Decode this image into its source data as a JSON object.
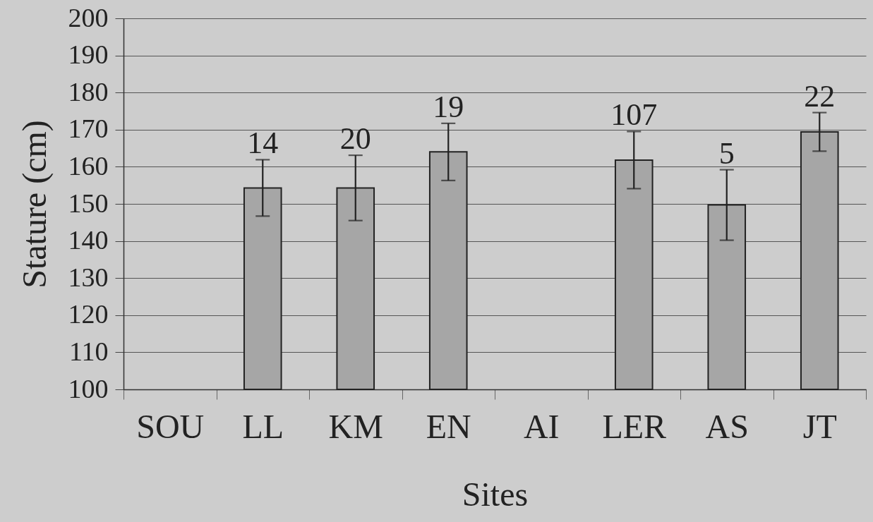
{
  "chart_data": {
    "type": "bar",
    "xlabel": "Sites",
    "ylabel": "Stature (cm)",
    "categories": [
      "SOU",
      "LL",
      "KM",
      "EN",
      "AI",
      "LER",
      "AS",
      "JT"
    ],
    "values": [
      null,
      154.3,
      154.3,
      164.0,
      null,
      161.8,
      149.7,
      169.4
    ],
    "errors": [
      null,
      7.6,
      8.8,
      7.7,
      null,
      7.7,
      9.5,
      5.2
    ],
    "annotations": [
      {
        "text": "14",
        "x": "LL",
        "y": 161.9
      },
      {
        "text": "20",
        "x": "KM",
        "y": 163.1
      },
      {
        "text": "19",
        "x": "EN",
        "y": 171.7
      },
      {
        "text": "107",
        "x": "LER",
        "y": 169.5
      },
      {
        "text": "5",
        "x": "AS",
        "y": 159.2
      },
      {
        "text": "22",
        "x": "JT",
        "y": 174.6
      }
    ],
    "color": "#a6a6a6",
    "ylim": [
      100,
      200
    ],
    "yticks": [
      100,
      110,
      120,
      130,
      140,
      150,
      160,
      170,
      180,
      190,
      200
    ],
    "grid": "y"
  }
}
